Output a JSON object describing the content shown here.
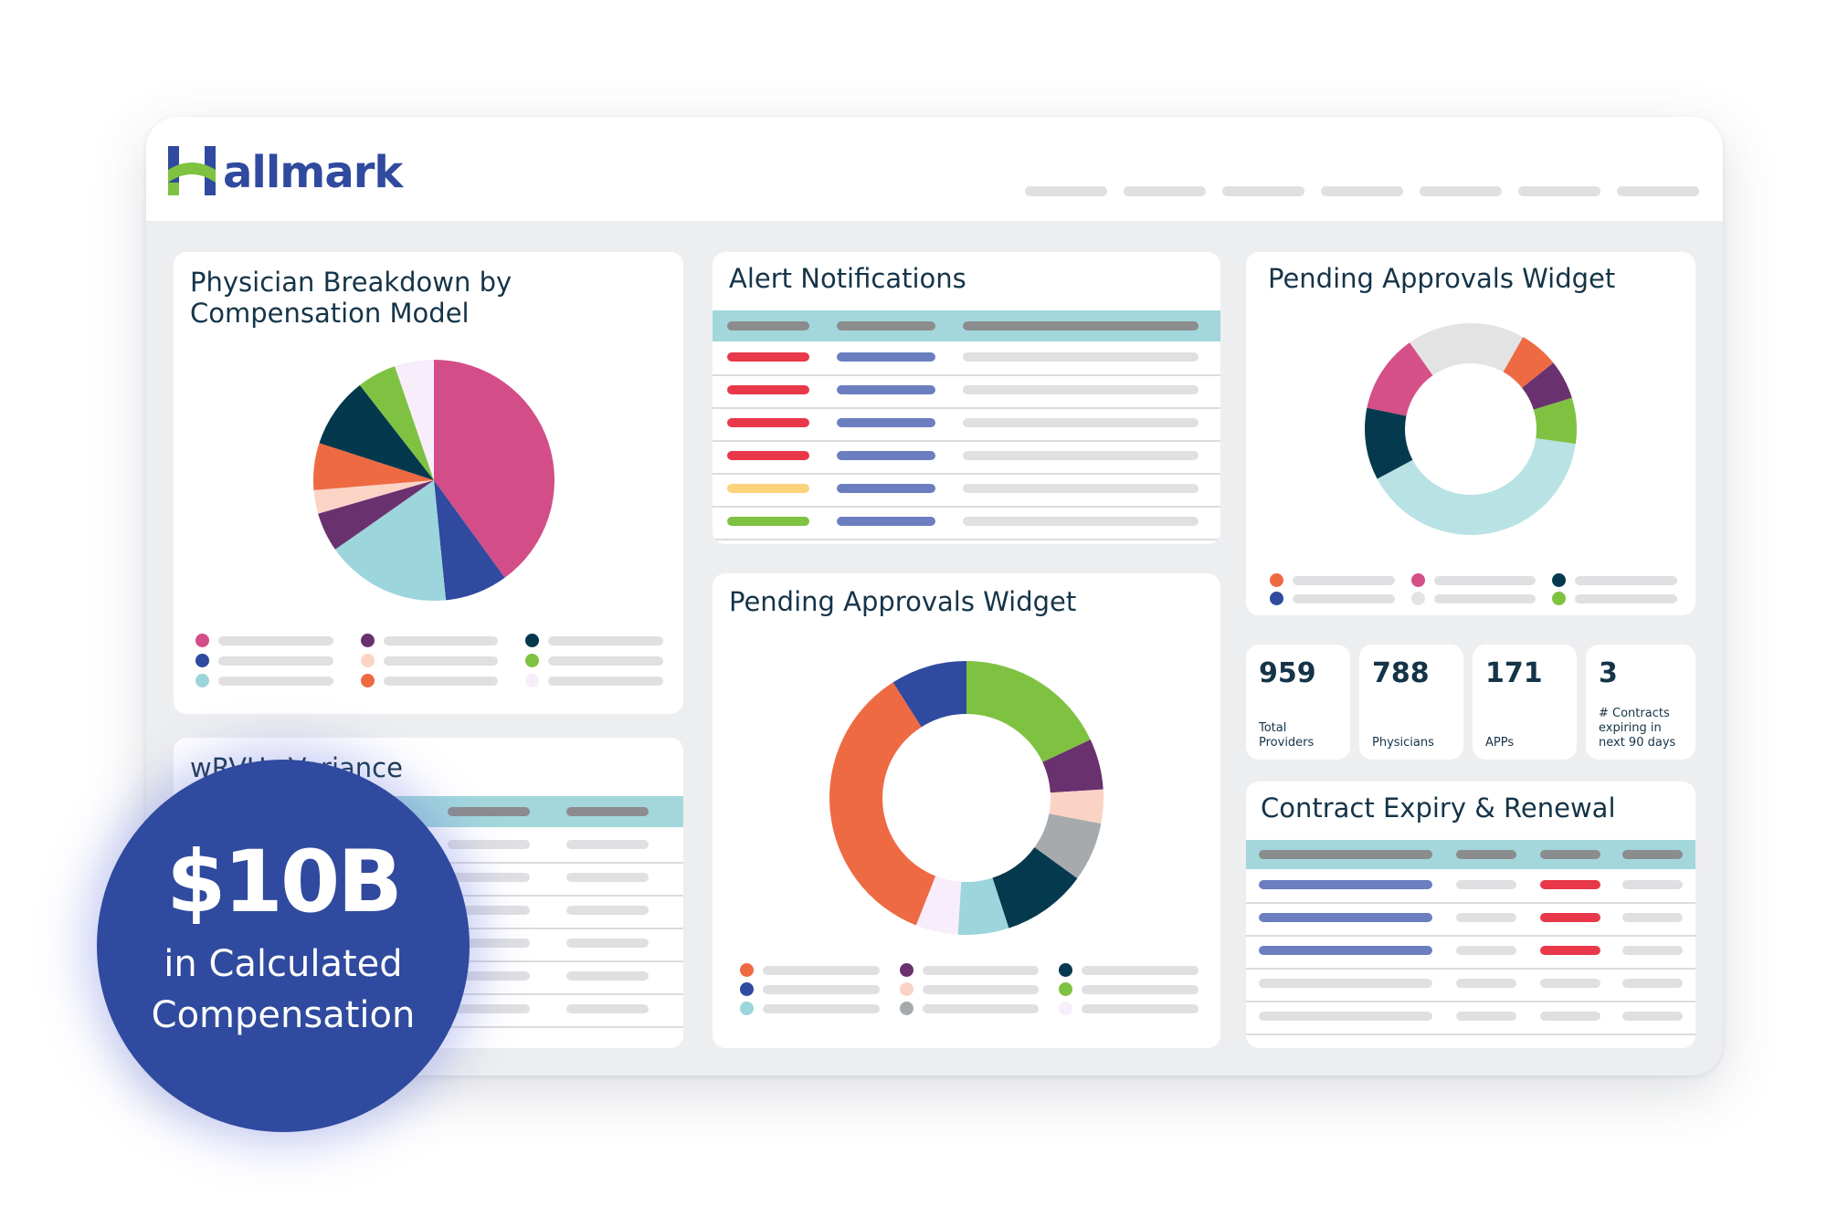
{
  "app": {
    "logo_text": "allmark",
    "logo_alt": "Hallmark"
  },
  "header": {
    "nav_count": 7
  },
  "cards": {
    "physician_breakdown": {
      "title": "Physician Breakdown by Compensation Model"
    },
    "alert_notifications": {
      "title": "Alert Notifications"
    },
    "pending_top": {
      "title": "Pending Approvals Widget"
    },
    "pending_center": {
      "title": "Pending Approvals Widget"
    },
    "wrvu_variance": {
      "title": "wRVUs Variance"
    },
    "contract_expiry": {
      "title": "Contract Expiry & Renewal"
    }
  },
  "stats": [
    {
      "value": "959",
      "label": "Total Providers"
    },
    {
      "value": "788",
      "label": "Physicians"
    },
    {
      "value": "171",
      "label": "APPs"
    },
    {
      "value": "3",
      "label": "# Contracts expiring in next 90 days"
    }
  ],
  "alert_status_colors": [
    "#e8384a",
    "#e8384a",
    "#e8384a",
    "#e8384a",
    "#fcd27b",
    "#7fc242"
  ],
  "contract_status_colors": [
    "#e8384a",
    "#e8384a",
    "#e8384a",
    "#dfdfe1",
    "#dfdfe1"
  ],
  "badge": {
    "value": "$10B",
    "caption": "in Calculated Compensation"
  },
  "chart_data": [
    {
      "type": "pie",
      "values": [
        38,
        8,
        16,
        5,
        3,
        6,
        9,
        5,
        5
      ],
      "colors": [
        "#d34e88",
        "#2f4a9e",
        "#9cd5db",
        "#6a316f",
        "#fbd4c6",
        "#ee6a43",
        "#04384c",
        "#7fc242",
        "#f8edfb"
      ]
    },
    {
      "type": "donut",
      "values": [
        40,
        11,
        12,
        18,
        6,
        6,
        7
      ],
      "colors": [
        "#b9e2e5",
        "#05394e",
        "#d54f88",
        "#e3e3e4",
        "#ee6a43",
        "#6a316f",
        "#7fc242",
        "#2f4a9e"
      ]
    },
    {
      "type": "donut",
      "values": [
        18,
        6,
        4,
        7,
        10,
        6,
        5,
        35,
        9
      ],
      "colors": [
        "#7fc242",
        "#6a316f",
        "#fad3c5",
        "#a7aaac",
        "#05394e",
        "#9cd5db",
        "#f8edfb",
        "#ee6a43",
        "#2f4a9e"
      ]
    }
  ]
}
